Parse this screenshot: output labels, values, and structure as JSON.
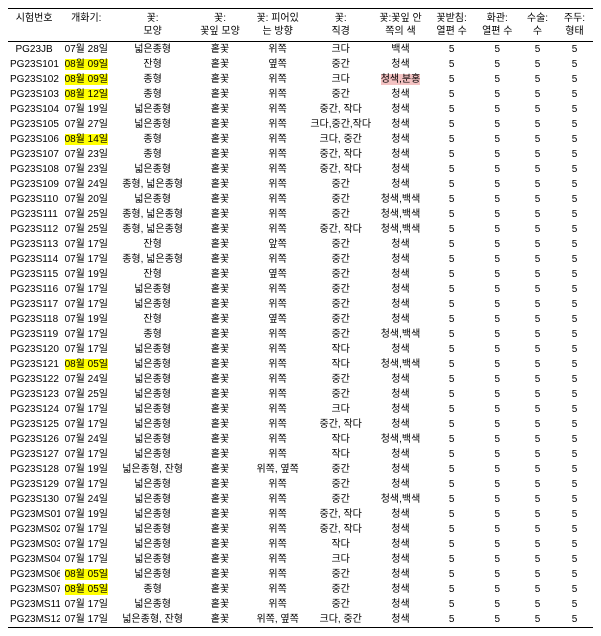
{
  "columns": [
    "시험번호",
    "개화기:",
    "꽃:\n모양",
    "꽃:\n꽃잎 모양",
    "꽃: 피어있\n는 방향",
    "꽃:\n직경",
    "꽃:꽃잎 안\n쪽의 색",
    "꽃받침:\n열편 수",
    "화관:\n열편 수",
    "수술:\n수",
    "주두:\n형태"
  ],
  "highlights": {
    "yellow": [
      [
        1,
        1
      ],
      [
        2,
        1
      ],
      [
        3,
        1
      ],
      [
        6,
        1
      ],
      [
        21,
        1
      ],
      [
        35,
        1
      ],
      [
        36,
        1
      ]
    ],
    "pink": [
      [
        2,
        6
      ]
    ]
  },
  "rows": [
    [
      "PG23JB",
      "07월 28일",
      "넓은종형",
      "홑꽃",
      "위쪽",
      "크다",
      "백색",
      "5",
      "5",
      "5",
      "5"
    ],
    [
      "PG23S101",
      "08월 09일",
      "잔형",
      "홑꽃",
      "옆쪽",
      "중간",
      "청색",
      "5",
      "5",
      "5",
      "5"
    ],
    [
      "PG23S102",
      "08월 09일",
      "종형",
      "홑꽃",
      "위쪽",
      "크다",
      "청색,분홍",
      "5",
      "5",
      "5",
      "5"
    ],
    [
      "PG23S103",
      "08월 12일",
      "종형",
      "홑꽃",
      "위쪽",
      "중간",
      "청색",
      "5",
      "5",
      "5",
      "5"
    ],
    [
      "PG23S104",
      "07월 19일",
      "넓은종형",
      "홑꽃",
      "위쪽",
      "중간, 작다",
      "청색",
      "5",
      "5",
      "5",
      "5"
    ],
    [
      "PG23S105",
      "07월 27일",
      "넓은종형",
      "홑꽃",
      "위쪽",
      "크다,중간,작다",
      "청색",
      "5",
      "5",
      "5",
      "5"
    ],
    [
      "PG23S106",
      "08월 14일",
      "종형",
      "홑꽃",
      "위쪽",
      "크다, 중간",
      "청색",
      "5",
      "5",
      "5",
      "5"
    ],
    [
      "PG23S107",
      "07월 23일",
      "종형",
      "홑꽃",
      "위쪽",
      "중간, 작다",
      "청색",
      "5",
      "5",
      "5",
      "5"
    ],
    [
      "PG23S108",
      "07월 23일",
      "넓은종형",
      "홑꽃",
      "위쪽",
      "중간, 작다",
      "청색",
      "5",
      "5",
      "5",
      "5"
    ],
    [
      "PG23S109",
      "07월 24일",
      "종형, 넓은종형",
      "홑꽃",
      "위쪽",
      "중간",
      "청색",
      "5",
      "5",
      "5",
      "5"
    ],
    [
      "PG23S110",
      "07월 20일",
      "넓은종형",
      "홑꽃",
      "위쪽",
      "중간",
      "청색,백색",
      "5",
      "5",
      "5",
      "5"
    ],
    [
      "PG23S111",
      "07월 25일",
      "종형, 넓은종형",
      "홑꽃",
      "위쪽",
      "중간",
      "청색,백색",
      "5",
      "5",
      "5",
      "5"
    ],
    [
      "PG23S112",
      "07월 25일",
      "종형, 넓은종형",
      "홑꽃",
      "위쪽",
      "중간, 작다",
      "청색,백색",
      "5",
      "5",
      "5",
      "5"
    ],
    [
      "PG23S113",
      "07월 17일",
      "잔형",
      "홑꽃",
      "앞쪽",
      "중간",
      "청색",
      "5",
      "5",
      "5",
      "5"
    ],
    [
      "PG23S114",
      "07월 17일",
      "종형, 넓은종형",
      "홑꽃",
      "위쪽",
      "중간",
      "청색",
      "5",
      "5",
      "5",
      "5"
    ],
    [
      "PG23S115",
      "07월 19일",
      "잔형",
      "홑꽃",
      "옆쪽",
      "중간",
      "청색",
      "5",
      "5",
      "5",
      "5"
    ],
    [
      "PG23S116",
      "07월 17일",
      "넓은종형",
      "홑꽃",
      "위쪽",
      "중간",
      "청색",
      "5",
      "5",
      "5",
      "5"
    ],
    [
      "PG23S117",
      "07월 17일",
      "넓은종형",
      "홑꽃",
      "위쪽",
      "중간",
      "청색",
      "5",
      "5",
      "5",
      "5"
    ],
    [
      "PG23S118",
      "07월 19일",
      "잔형",
      "홑꽃",
      "옆쪽",
      "중간",
      "청색",
      "5",
      "5",
      "5",
      "5"
    ],
    [
      "PG23S119",
      "07월 17일",
      "종형",
      "홑꽃",
      "위쪽",
      "중간",
      "청색,백색",
      "5",
      "5",
      "5",
      "5"
    ],
    [
      "PG23S120",
      "07월 17일",
      "넓은종형",
      "홑꽃",
      "위쪽",
      "작다",
      "청색",
      "5",
      "5",
      "5",
      "5"
    ],
    [
      "PG23S121",
      "08월 05일",
      "넓은종형",
      "홑꽃",
      "위쪽",
      "작다",
      "청색,백색",
      "5",
      "5",
      "5",
      "5"
    ],
    [
      "PG23S122",
      "07월 24일",
      "넓은종형",
      "홑꽃",
      "위쪽",
      "중간",
      "청색",
      "5",
      "5",
      "5",
      "5"
    ],
    [
      "PG23S123",
      "07월 25일",
      "넓은종형",
      "홑꽃",
      "위쪽",
      "중간",
      "청색",
      "5",
      "5",
      "5",
      "5"
    ],
    [
      "PG23S124",
      "07월 17일",
      "넓은종형",
      "홑꽃",
      "위쪽",
      "크다",
      "청색",
      "5",
      "5",
      "5",
      "5"
    ],
    [
      "PG23S125",
      "07월 17일",
      "넓은종형",
      "홑꽃",
      "위쪽",
      "중간, 작다",
      "청색",
      "5",
      "5",
      "5",
      "5"
    ],
    [
      "PG23S126",
      "07월 24일",
      "넓은종형",
      "홑꽃",
      "위쪽",
      "작다",
      "청색,백색",
      "5",
      "5",
      "5",
      "5"
    ],
    [
      "PG23S127",
      "07월 17일",
      "넓은종형",
      "홑꽃",
      "위쪽",
      "작다",
      "청색",
      "5",
      "5",
      "5",
      "5"
    ],
    [
      "PG23S128",
      "07월 19일",
      "넓은종형, 잔형",
      "홑꽃",
      "위쪽, 옆쪽",
      "중간",
      "청색",
      "5",
      "5",
      "5",
      "5"
    ],
    [
      "PG23S129",
      "07월 17일",
      "넓은종형",
      "홑꽃",
      "위쪽",
      "중간",
      "청색",
      "5",
      "5",
      "5",
      "5"
    ],
    [
      "PG23S130",
      "07월 24일",
      "넓은종형",
      "홑꽃",
      "위쪽",
      "중간",
      "청색,백색",
      "5",
      "5",
      "5",
      "5"
    ],
    [
      "PG23MS01",
      "07월 19일",
      "넓은종형",
      "홑꽃",
      "위쪽",
      "중간, 작다",
      "청색",
      "5",
      "5",
      "5",
      "5"
    ],
    [
      "PG23MS02",
      "07월 17일",
      "넓은종형",
      "홑꽃",
      "위쪽",
      "중간, 작다",
      "청색",
      "5",
      "5",
      "5",
      "5"
    ],
    [
      "PG23MS03",
      "07월 17일",
      "넓은종형",
      "홑꽃",
      "위쪽",
      "작다",
      "청색",
      "5",
      "5",
      "5",
      "5"
    ],
    [
      "PG23MS04",
      "07월 17일",
      "넓은종형",
      "홑꽃",
      "위쪽",
      "크다",
      "청색",
      "5",
      "5",
      "5",
      "5"
    ],
    [
      "PG23MS06",
      "08월 05일",
      "넓은종형",
      "홑꽃",
      "위쪽",
      "중간",
      "청색",
      "5",
      "5",
      "5",
      "5"
    ],
    [
      "PG23MS07",
      "08월 05일",
      "종형",
      "홑꽃",
      "위쪽",
      "중간",
      "청색",
      "5",
      "5",
      "5",
      "5"
    ],
    [
      "PG23MS11",
      "07월 17일",
      "넓은종형",
      "홑꽃",
      "위쪽",
      "중간",
      "청색",
      "5",
      "5",
      "5",
      "5"
    ],
    [
      "PG23MS12",
      "07월 17일",
      "넓은종형, 잔형",
      "홑꽃",
      "위쪽, 옆쪽",
      "크다, 중간",
      "청색",
      "5",
      "5",
      "5",
      "5"
    ]
  ]
}
